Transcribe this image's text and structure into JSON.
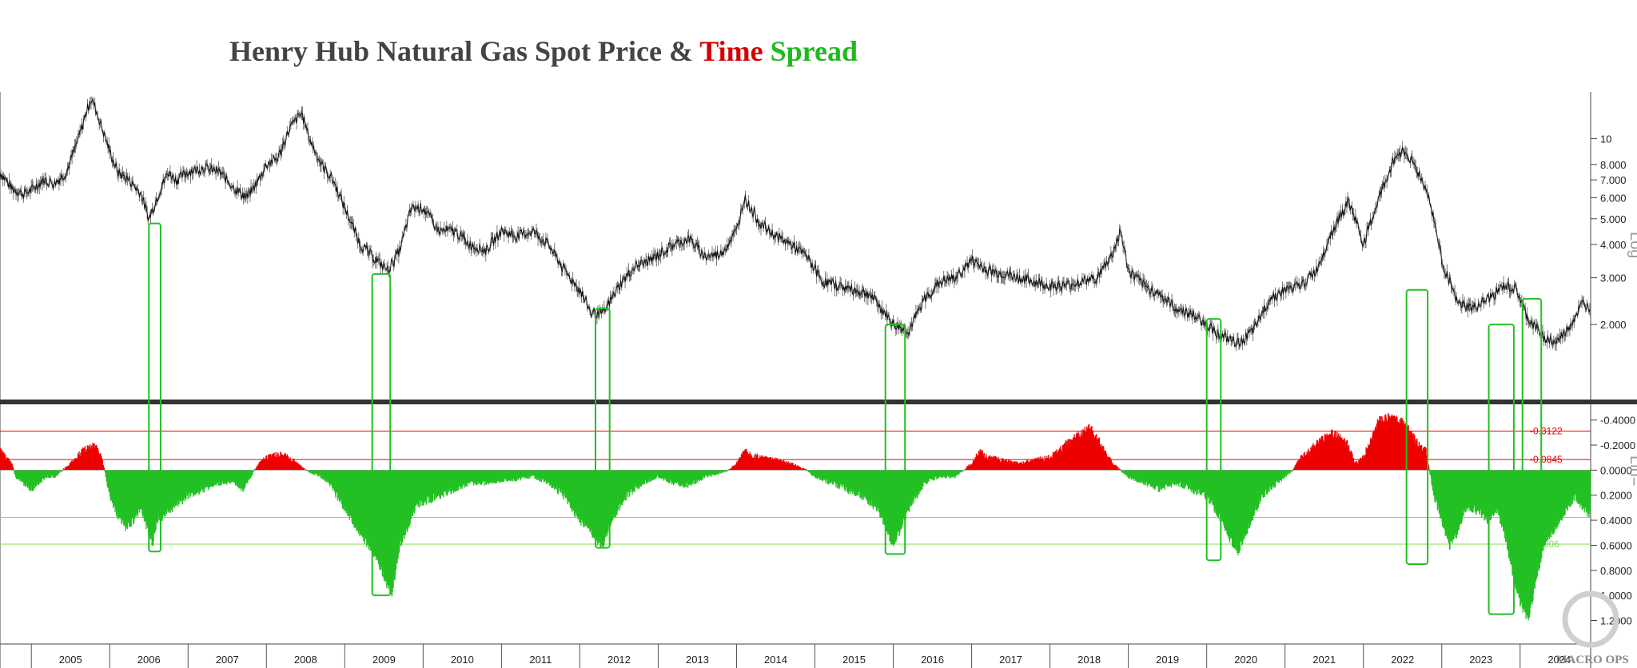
{
  "title": {
    "part1": "Henry Hub Natural Gas Spot Price  & ",
    "part2": "Time",
    "part3": " Spread",
    "color1": "#444444",
    "color2": "#d40000",
    "color3": "#22b822"
  },
  "upper_axis_label": "Log",
  "lower_axis_label": "Lin=",
  "logo_text": "MACRO OPS",
  "colors": {
    "price": "#111111",
    "positive": "#22c022",
    "negative": "#ee0000",
    "box": "#22c022",
    "divider": "#333333"
  },
  "chart_data": [
    {
      "type": "line",
      "title": "",
      "y_scale": "log",
      "ylim": [
        1.2,
        15
      ],
      "y_ticks": [
        2,
        3,
        4,
        5,
        6,
        7,
        8,
        10
      ],
      "y_tick_labels": [
        "2.000",
        "3.000",
        "4.000",
        "5.000",
        "6.000",
        "7.000",
        "8.000",
        "10"
      ],
      "xlim": [
        2004.6,
        2024.9
      ],
      "series": [
        {
          "x": [
            2004.6,
            2004.75,
            2004.9,
            2005.0,
            2005.15,
            2005.3,
            2005.45,
            2005.6,
            2005.75,
            2005.8,
            2005.9,
            2006.0,
            2006.1,
            2006.25,
            2006.4,
            2006.5,
            2006.65,
            2006.75,
            2006.85,
            2007.0,
            2007.2,
            2007.4,
            2007.6,
            2007.75,
            2007.9,
            2008.0,
            2008.15,
            2008.3,
            2008.45,
            2008.55,
            2008.7,
            2008.85,
            2009.0,
            2009.2,
            2009.4,
            2009.55,
            2009.7,
            2009.85,
            2010.0,
            2010.2,
            2010.4,
            2010.6,
            2010.8,
            2011.0,
            2011.2,
            2011.4,
            2011.6,
            2011.8,
            2012.0,
            2012.15,
            2012.3,
            2012.5,
            2012.7,
            2012.9,
            2013.2,
            2013.4,
            2013.6,
            2013.8,
            2014.0,
            2014.1,
            2014.3,
            2014.5,
            2014.7,
            2014.9,
            2015.1,
            2015.3,
            2015.5,
            2015.7,
            2015.9,
            2016.0,
            2016.2,
            2016.4,
            2016.6,
            2016.8,
            2017.0,
            2017.2,
            2017.4,
            2017.6,
            2017.8,
            2018.0,
            2018.2,
            2018.4,
            2018.6,
            2018.8,
            2018.9,
            2019.0,
            2019.2,
            2019.4,
            2019.6,
            2019.8,
            2020.0,
            2020.2,
            2020.4,
            2020.6,
            2020.8,
            2021.0,
            2021.2,
            2021.4,
            2021.6,
            2021.8,
            2021.9,
            2022.0,
            2022.2,
            2022.4,
            2022.5,
            2022.6,
            2022.8,
            2022.9,
            2023.0,
            2023.2,
            2023.4,
            2023.6,
            2023.8,
            2023.95,
            2024.1,
            2024.3,
            2024.45,
            2024.6,
            2024.8,
            2024.9
          ],
          "y": [
            7.5,
            6.5,
            6.2,
            6.4,
            7.0,
            6.8,
            7.5,
            10.0,
            14.0,
            13.5,
            11.0,
            9.0,
            7.5,
            7.0,
            6.2,
            5.0,
            6.5,
            7.5,
            7.0,
            7.5,
            7.8,
            7.5,
            6.5,
            6.0,
            7.0,
            8.0,
            8.5,
            11.0,
            12.5,
            10.0,
            8.0,
            7.0,
            5.5,
            4.0,
            3.5,
            3.2,
            3.8,
            5.5,
            5.5,
            4.5,
            4.5,
            4.0,
            3.8,
            4.5,
            4.3,
            4.5,
            4.0,
            3.2,
            2.7,
            2.2,
            2.2,
            2.8,
            3.3,
            3.5,
            4.0,
            4.2,
            3.6,
            3.7,
            4.5,
            6.0,
            4.8,
            4.3,
            4.0,
            3.6,
            2.9,
            2.8,
            2.7,
            2.6,
            2.2,
            2.0,
            1.9,
            2.5,
            2.9,
            3.0,
            3.5,
            3.2,
            3.1,
            3.0,
            2.9,
            2.8,
            2.8,
            2.9,
            3.0,
            3.7,
            4.5,
            3.2,
            2.8,
            2.6,
            2.3,
            2.2,
            2.0,
            1.8,
            1.7,
            1.9,
            2.5,
            2.7,
            2.8,
            3.2,
            4.5,
            5.8,
            5.0,
            4.0,
            6.0,
            8.5,
            9.0,
            8.5,
            6.5,
            5.0,
            3.5,
            2.4,
            2.3,
            2.5,
            2.8,
            2.7,
            2.1,
            1.8,
            1.7,
            1.9,
            2.4,
            2.3
          ]
        }
      ]
    },
    {
      "type": "area",
      "title": "",
      "y_scale": "linear",
      "y_inverted": true,
      "ylim": [
        -0.5,
        1.35
      ],
      "y_ticks": [
        -0.4,
        -0.2,
        0,
        0.2,
        0.4,
        0.6,
        0.8,
        1.0,
        1.2
      ],
      "y_tick_labels": [
        "-0.4000",
        "-0.2000",
        "0.0000",
        "0.2000",
        "0.4000",
        "0.6000",
        "0.8000",
        "1.0000",
        "1.2000"
      ],
      "reference_lines": [
        {
          "value": -0.3122,
          "label": "-0.3122",
          "color": "#ee0000"
        },
        {
          "value": -0.0845,
          "label": "-0.0845",
          "color": "#ee0000"
        },
        {
          "value": 0.3769,
          "label": "0.3769",
          "color": "#7fe050"
        },
        {
          "value": 0.5906,
          "label": "0.5906",
          "color": "#7fe050"
        }
      ],
      "series": [
        {
          "name": "",
          "x": [
            2004.6,
            2004.75,
            2004.8,
            2004.9,
            2005.0,
            2005.1,
            2005.2,
            2005.3,
            2005.4,
            2005.5,
            2005.65,
            2005.8,
            2005.9,
            2006.0,
            2006.1,
            2006.2,
            2006.3,
            2006.4,
            2006.5,
            2006.55,
            2006.6,
            2006.7,
            2006.8,
            2006.9,
            2007.0,
            2007.2,
            2007.4,
            2007.6,
            2007.7,
            2007.8,
            2007.9,
            2008.0,
            2008.1,
            2008.2,
            2008.3,
            2008.4,
            2008.5,
            2008.7,
            2008.8,
            2008.9,
            2009.0,
            2009.1,
            2009.2,
            2009.3,
            2009.4,
            2009.5,
            2009.6,
            2009.7,
            2009.9,
            2010.0,
            2010.2,
            2010.4,
            2010.6,
            2010.8,
            2011.0,
            2011.2,
            2011.4,
            2011.6,
            2011.8,
            2011.9,
            2012.0,
            2012.1,
            2012.2,
            2012.3,
            2012.4,
            2012.6,
            2012.8,
            2013.0,
            2013.2,
            2013.4,
            2013.6,
            2013.8,
            2013.9,
            2014.0,
            2014.1,
            2014.3,
            2014.5,
            2014.7,
            2014.9,
            2015.0,
            2015.2,
            2015.4,
            2015.6,
            2015.8,
            2015.9,
            2016.0,
            2016.2,
            2016.4,
            2016.6,
            2016.8,
            2017.0,
            2017.1,
            2017.2,
            2017.4,
            2017.6,
            2017.8,
            2018.0,
            2018.1,
            2018.2,
            2018.3,
            2018.4,
            2018.5,
            2018.6,
            2018.7,
            2018.8,
            2018.9,
            2019.0,
            2019.2,
            2019.4,
            2019.6,
            2019.8,
            2020.0,
            2020.1,
            2020.2,
            2020.3,
            2020.4,
            2020.5,
            2020.6,
            2020.7,
            2020.8,
            2020.9,
            2021.0,
            2021.1,
            2021.2,
            2021.3,
            2021.4,
            2021.5,
            2021.6,
            2021.7,
            2021.8,
            2021.9,
            2022.0,
            2022.1,
            2022.2,
            2022.3,
            2022.4,
            2022.5,
            2022.6,
            2022.7,
            2022.8,
            2022.9,
            2023.0,
            2023.1,
            2023.2,
            2023.3,
            2023.4,
            2023.5,
            2023.6,
            2023.7,
            2023.8,
            2023.9,
            2024.0,
            2024.1,
            2024.2,
            2024.3,
            2024.4,
            2024.5,
            2024.6,
            2024.7,
            2024.8,
            2024.9
          ],
          "y": [
            -0.15,
            -0.05,
            0.05,
            0.1,
            0.15,
            0.1,
            0.05,
            0.05,
            0.0,
            -0.05,
            -0.15,
            -0.2,
            -0.1,
            0.2,
            0.35,
            0.45,
            0.4,
            0.3,
            0.5,
            0.6,
            0.4,
            0.35,
            0.3,
            0.25,
            0.2,
            0.15,
            0.1,
            0.1,
            0.15,
            0.05,
            -0.05,
            -0.1,
            -0.12,
            -0.12,
            -0.1,
            -0.05,
            0.0,
            0.05,
            0.1,
            0.2,
            0.3,
            0.4,
            0.5,
            0.6,
            0.7,
            0.85,
            1.0,
            0.6,
            0.3,
            0.25,
            0.2,
            0.15,
            0.1,
            0.1,
            0.08,
            0.07,
            0.05,
            0.1,
            0.2,
            0.3,
            0.4,
            0.45,
            0.55,
            0.6,
            0.4,
            0.2,
            0.1,
            0.05,
            0.1,
            0.12,
            0.05,
            0.02,
            0.0,
            -0.05,
            -0.15,
            -0.1,
            -0.08,
            -0.05,
            0.0,
            0.05,
            0.1,
            0.15,
            0.2,
            0.3,
            0.45,
            0.6,
            0.3,
            0.1,
            0.05,
            0.05,
            -0.05,
            -0.15,
            -0.1,
            -0.08,
            -0.05,
            -0.08,
            -0.1,
            -0.15,
            -0.2,
            -0.25,
            -0.3,
            -0.35,
            -0.25,
            -0.15,
            -0.05,
            0.0,
            0.05,
            0.1,
            0.15,
            0.1,
            0.15,
            0.2,
            0.3,
            0.4,
            0.55,
            0.65,
            0.5,
            0.35,
            0.2,
            0.15,
            0.1,
            0.05,
            0.0,
            -0.1,
            -0.15,
            -0.2,
            -0.25,
            -0.3,
            -0.25,
            -0.2,
            -0.05,
            -0.1,
            -0.25,
            -0.4,
            -0.42,
            -0.4,
            -0.38,
            -0.3,
            -0.2,
            -0.15,
            0.2,
            0.4,
            0.6,
            0.5,
            0.3,
            0.3,
            0.35,
            0.4,
            0.3,
            0.5,
            0.8,
            1.05,
            1.2,
            0.9,
            0.6,
            0.5,
            0.4,
            0.3,
            0.2,
            0.3,
            0.35
          ]
        }
      ]
    }
  ],
  "x_axis": {
    "labels": [
      "2005",
      "2006",
      "2007",
      "2008",
      "2009",
      "2010",
      "2011",
      "2012",
      "2013",
      "2014",
      "2015",
      "2016",
      "2017",
      "2018",
      "2019",
      "2020",
      "2021",
      "2022",
      "2023",
      "2024"
    ]
  },
  "highlight_boxes": [
    {
      "x0": 2006.5,
      "x1": 2006.65,
      "top": 4.8,
      "bottom": 0.65
    },
    {
      "x0": 2009.35,
      "x1": 2009.58,
      "top": 3.1,
      "bottom": 1.0
    },
    {
      "x0": 2012.2,
      "x1": 2012.38,
      "top": 2.3,
      "bottom": 0.62
    },
    {
      "x0": 2015.9,
      "x1": 2016.15,
      "top": 2.0,
      "bottom": 0.67
    },
    {
      "x0": 2020.0,
      "x1": 2020.18,
      "top": 2.1,
      "bottom": 0.72
    },
    {
      "x0": 2022.55,
      "x1": 2022.82,
      "top": 2.7,
      "bottom": 0.75
    },
    {
      "x0": 2023.6,
      "x1": 2023.92,
      "top": 2.0,
      "bottom": 1.15
    },
    {
      "x0": 2024.03,
      "x1": 2024.27,
      "top": 2.5,
      "bottom": 0.65
    }
  ]
}
